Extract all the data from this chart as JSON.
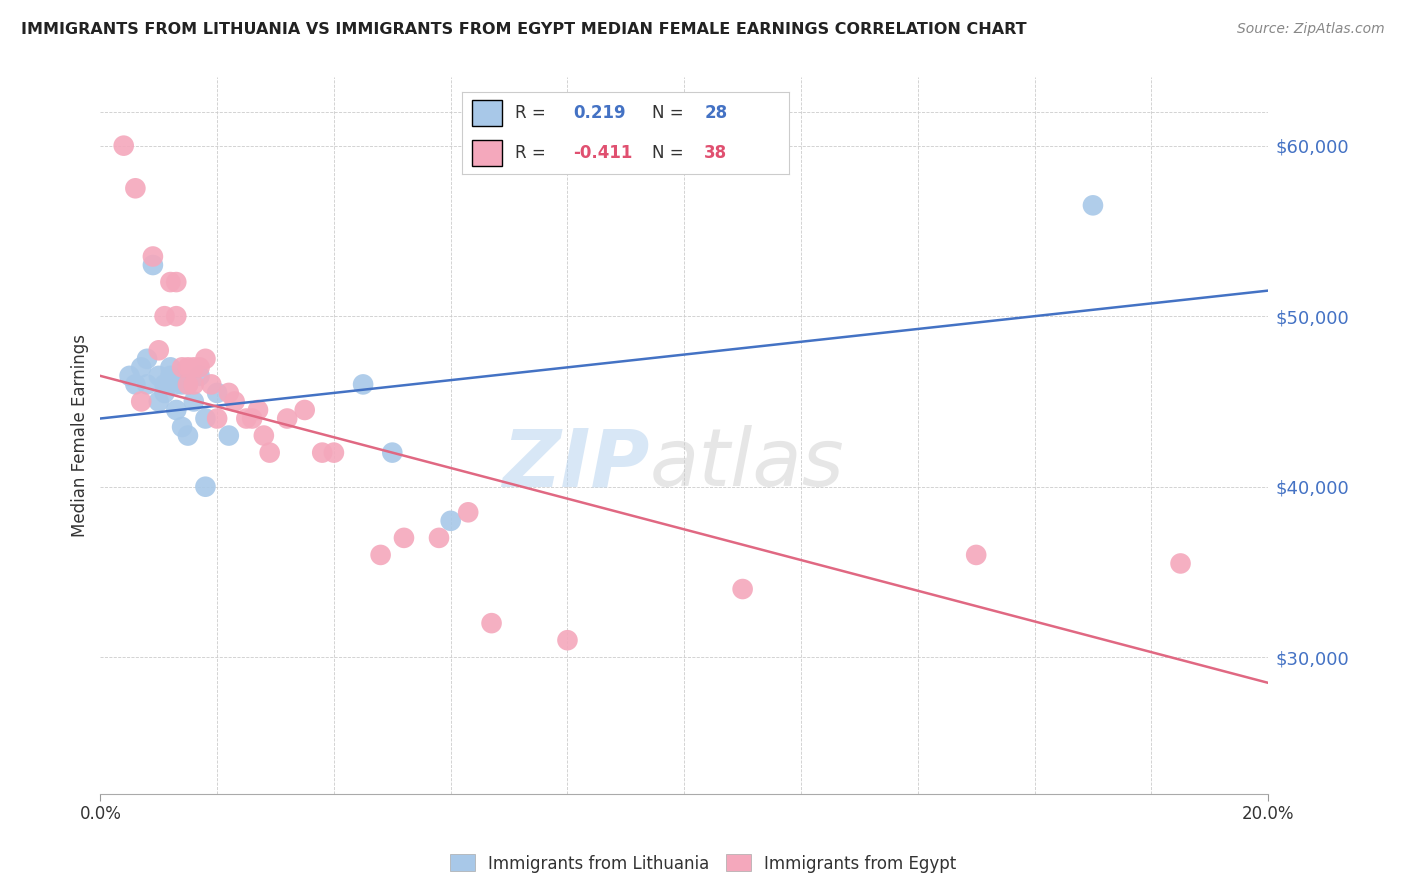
{
  "title": "IMMIGRANTS FROM LITHUANIA VS IMMIGRANTS FROM EGYPT MEDIAN FEMALE EARNINGS CORRELATION CHART",
  "source": "Source: ZipAtlas.com",
  "ylabel": "Median Female Earnings",
  "watermark_zip": "ZIP",
  "watermark_atlas": "atlas",
  "legend_blue_r": "0.219",
  "legend_blue_n": "28",
  "legend_pink_r": "-0.411",
  "legend_pink_n": "38",
  "legend_label_blue": "Immigrants from Lithuania",
  "legend_label_pink": "Immigrants from Egypt",
  "xlim": [
    0.0,
    0.2
  ],
  "ylim": [
    22000,
    64000
  ],
  "yticks": [
    30000,
    40000,
    50000,
    60000
  ],
  "ytick_labels": [
    "$30,000",
    "$40,000",
    "$50,000",
    "$60,000"
  ],
  "xtick_positions": [
    0.0,
    0.02,
    0.04,
    0.06,
    0.08,
    0.1,
    0.12,
    0.14,
    0.16,
    0.18,
    0.2
  ],
  "xtick_labels_major": [
    "0.0%",
    "",
    "",
    "",
    "",
    "",
    "",
    "",
    "",
    "",
    "20.0%"
  ],
  "color_blue": "#a8c8e8",
  "color_pink": "#f4a8bc",
  "color_blue_line": "#4472c4",
  "color_pink_line": "#e06882",
  "color_blue_text": "#4472c4",
  "color_pink_text": "#e05070",
  "blue_x": [
    0.005,
    0.006,
    0.007,
    0.008,
    0.008,
    0.009,
    0.01,
    0.01,
    0.011,
    0.011,
    0.012,
    0.012,
    0.013,
    0.013,
    0.014,
    0.014,
    0.015,
    0.015,
    0.016,
    0.017,
    0.018,
    0.018,
    0.02,
    0.022,
    0.045,
    0.05,
    0.06,
    0.17
  ],
  "blue_y": [
    46500,
    46000,
    47000,
    47500,
    46000,
    53000,
    46500,
    45000,
    46000,
    45500,
    47000,
    46500,
    46000,
    44500,
    46000,
    43500,
    46000,
    43000,
    45000,
    46500,
    44000,
    40000,
    45500,
    43000,
    46000,
    42000,
    38000,
    56500
  ],
  "pink_x": [
    0.004,
    0.006,
    0.007,
    0.009,
    0.01,
    0.011,
    0.012,
    0.013,
    0.013,
    0.014,
    0.015,
    0.015,
    0.016,
    0.016,
    0.017,
    0.018,
    0.019,
    0.02,
    0.022,
    0.023,
    0.025,
    0.026,
    0.027,
    0.028,
    0.029,
    0.032,
    0.035,
    0.038,
    0.04,
    0.048,
    0.052,
    0.058,
    0.063,
    0.067,
    0.08,
    0.11,
    0.15,
    0.185
  ],
  "pink_y": [
    60000,
    57500,
    45000,
    53500,
    48000,
    50000,
    52000,
    52000,
    50000,
    47000,
    47000,
    46000,
    47000,
    46000,
    47000,
    47500,
    46000,
    44000,
    45500,
    45000,
    44000,
    44000,
    44500,
    43000,
    42000,
    44000,
    44500,
    42000,
    42000,
    36000,
    37000,
    37000,
    38500,
    32000,
    31000,
    34000,
    36000,
    35500
  ],
  "blue_line_y_at_0": 44000,
  "blue_line_y_at_20": 51500,
  "pink_line_y_at_0": 46500,
  "pink_line_y_at_20": 28500
}
